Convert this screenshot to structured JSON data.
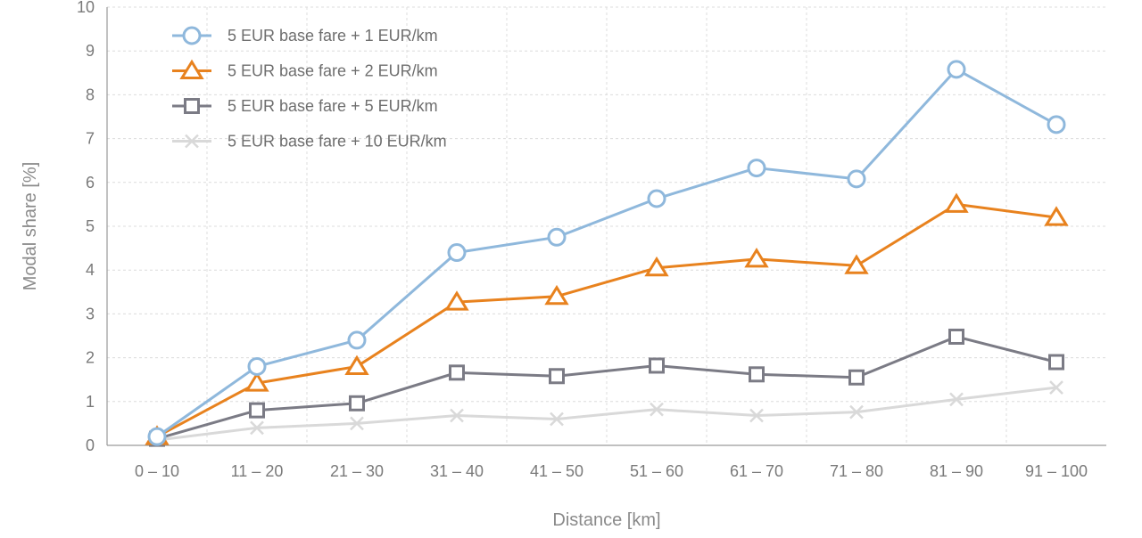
{
  "chart_data": {
    "type": "line",
    "title": "",
    "xlabel": "Distance [km]",
    "ylabel": "Modal share [%]",
    "categories": [
      "0 – 10",
      "11 – 20",
      "21 – 30",
      "31 – 40",
      "41 – 50",
      "51 – 60",
      "61 – 70",
      "71 – 80",
      "81 – 90",
      "91 – 100"
    ],
    "ylim": [
      0,
      10
    ],
    "yticks": [
      0,
      1,
      2,
      3,
      4,
      5,
      6,
      7,
      8,
      9,
      10
    ],
    "grid": true,
    "legend_position": "top-left",
    "series": [
      {
        "name": "5 EUR base fare + 1 EUR/km",
        "marker": "circle",
        "color": "#8fb8dc",
        "values": [
          0.2,
          1.8,
          2.4,
          4.4,
          4.75,
          5.63,
          6.33,
          6.08,
          8.58,
          7.32
        ]
      },
      {
        "name": "5 EUR base fare + 2 EUR/km",
        "marker": "triangle",
        "color": "#e8821e",
        "values": [
          0.2,
          1.42,
          1.8,
          3.27,
          3.4,
          4.05,
          4.25,
          4.1,
          5.5,
          5.2
        ]
      },
      {
        "name": "5 EUR base fare + 5 EUR/km",
        "marker": "square",
        "color": "#7b7b85",
        "values": [
          0.15,
          0.8,
          0.96,
          1.66,
          1.58,
          1.82,
          1.62,
          1.55,
          2.48,
          1.9
        ]
      },
      {
        "name": "5 EUR base fare + 10 EUR/km",
        "marker": "x",
        "color": "#d9d9d9",
        "values": [
          0.12,
          0.4,
          0.5,
          0.68,
          0.6,
          0.82,
          0.68,
          0.76,
          1.05,
          1.32
        ]
      }
    ]
  }
}
